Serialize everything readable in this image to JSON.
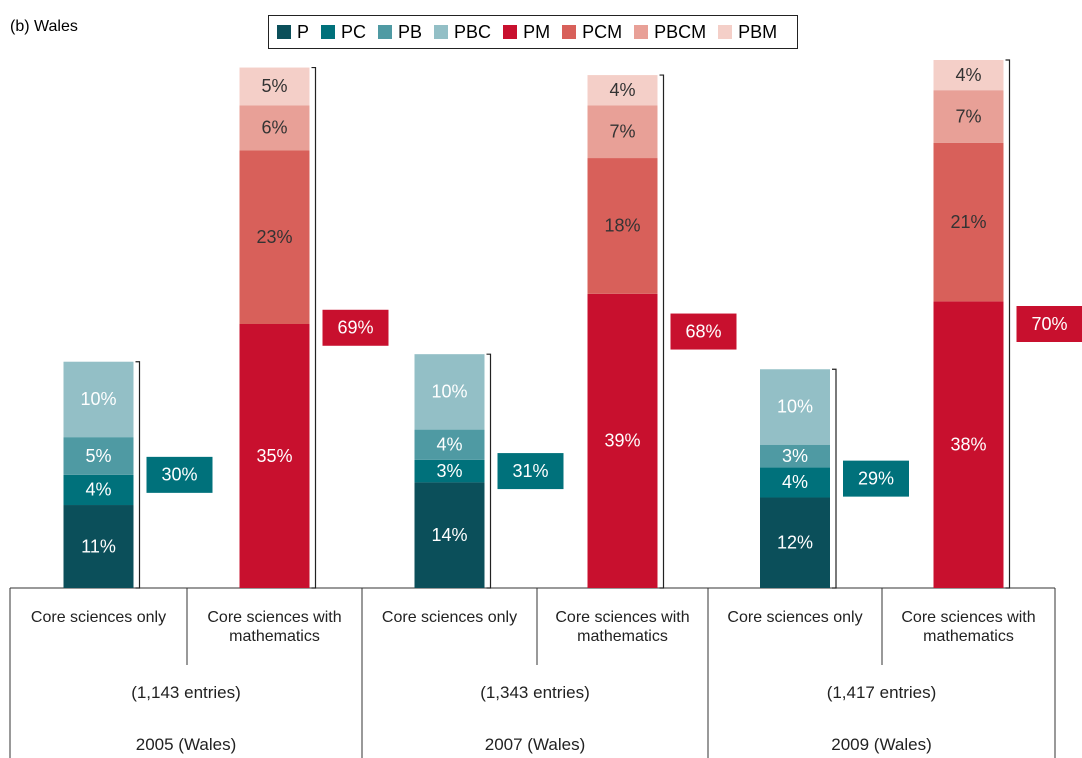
{
  "chart_data": {
    "type": "stacked_bar",
    "title": "(b) Wales",
    "categories": [
      "Core sciences only",
      "Core sciences with mathematics",
      "Core sciences only",
      "Core sciences with mathematics",
      "Core sciences only",
      "Core sciences with mathematics"
    ],
    "groups": [
      {
        "entries": "(1,143 entries)",
        "label": "2005 (Wales)"
      },
      {
        "entries": "(1,343 entries)",
        "label": "2007 (Wales)"
      },
      {
        "entries": "(1,417 entries)",
        "label": "2009 (Wales)"
      }
    ],
    "series": [
      {
        "name": "P",
        "color": "#0b4f5a",
        "label_color": "#ffffff",
        "values": [
          11,
          null,
          14,
          null,
          12,
          null
        ],
        "value_labels": [
          "11%",
          null,
          "14%",
          null,
          "12%",
          null
        ]
      },
      {
        "name": "PC",
        "color": "#00717b",
        "label_color": "#ffffff",
        "values": [
          4,
          null,
          3,
          null,
          4,
          null
        ],
        "value_labels": [
          "4%",
          null,
          "3%",
          null,
          "4%",
          null
        ]
      },
      {
        "name": "PB",
        "color": "#4f9aa3",
        "label_color": "#ffffff",
        "values": [
          5,
          null,
          4,
          null,
          3,
          null
        ],
        "value_labels": [
          "5%",
          null,
          "4%",
          null,
          "3%",
          null
        ]
      },
      {
        "name": "PBC",
        "color": "#93bfc6",
        "label_color": "#ffffff",
        "values": [
          10,
          null,
          10,
          null,
          10,
          null
        ],
        "value_labels": [
          "10%",
          null,
          "10%",
          null,
          "10%",
          null
        ]
      },
      {
        "name": "PM",
        "color": "#c8102e",
        "label_color": "#ffffff",
        "values": [
          null,
          35,
          null,
          39,
          null,
          38
        ],
        "value_labels": [
          null,
          "35%",
          null,
          "39%",
          null,
          "38%"
        ]
      },
      {
        "name": "PCM",
        "color": "#d8605a",
        "label_color": "#333333",
        "values": [
          null,
          23,
          null,
          18,
          null,
          21
        ],
        "value_labels": [
          null,
          "23%",
          null,
          "18%",
          null,
          "21%"
        ]
      },
      {
        "name": "PBCM",
        "color": "#e8a097",
        "label_color": "#333333",
        "values": [
          null,
          6,
          null,
          7,
          null,
          7
        ],
        "value_labels": [
          null,
          "6%",
          null,
          "7%",
          null,
          "7%"
        ]
      },
      {
        "name": "PBM",
        "color": "#f4cfc8",
        "label_color": "#333333",
        "values": [
          null,
          5,
          null,
          4,
          null,
          4
        ],
        "value_labels": [
          null,
          "5%",
          null,
          "4%",
          null,
          "4%"
        ]
      }
    ],
    "totals": [
      30,
      69,
      31,
      68,
      29,
      70
    ],
    "total_labels": [
      "30%",
      "69%",
      "31%",
      "68%",
      "29%",
      "70%"
    ],
    "total_colors": [
      "#00717b",
      "#c8102e",
      "#00717b",
      "#c8102e",
      "#00717b",
      "#c8102e"
    ]
  }
}
